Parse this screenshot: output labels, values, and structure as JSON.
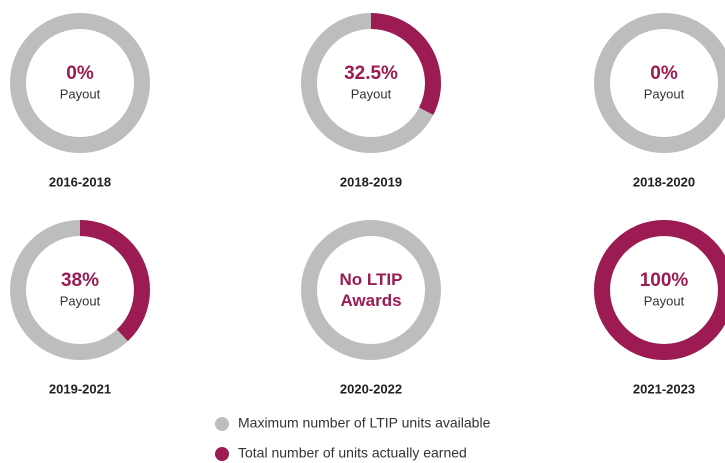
{
  "chart_data": [
    {
      "type": "donut",
      "title": "2016-2018",
      "value": 0,
      "value_label": "0%",
      "subtitle": "Payout"
    },
    {
      "type": "donut",
      "title": "2018-2019",
      "value": 32.5,
      "value_label": "32.5%",
      "subtitle": "Payout"
    },
    {
      "type": "donut",
      "title": "2018-2020",
      "value": 0,
      "value_label": "0%",
      "subtitle": "Payout"
    },
    {
      "type": "donut",
      "title": "2019-2021",
      "value": 38,
      "value_label": "38%",
      "subtitle": "Payout"
    },
    {
      "type": "donut",
      "title": "2020-2022",
      "annotation": "No LTIP Awards"
    },
    {
      "type": "donut",
      "title": "2021-2023",
      "value": 100,
      "value_label": "100%",
      "subtitle": "Payout"
    }
  ],
  "legend": {
    "items": [
      {
        "name": "Maximum number of LTIP units available",
        "color": "#bdbdbd"
      },
      {
        "name": "Total number of units actually earned",
        "color": "#9b1b52"
      }
    ]
  }
}
